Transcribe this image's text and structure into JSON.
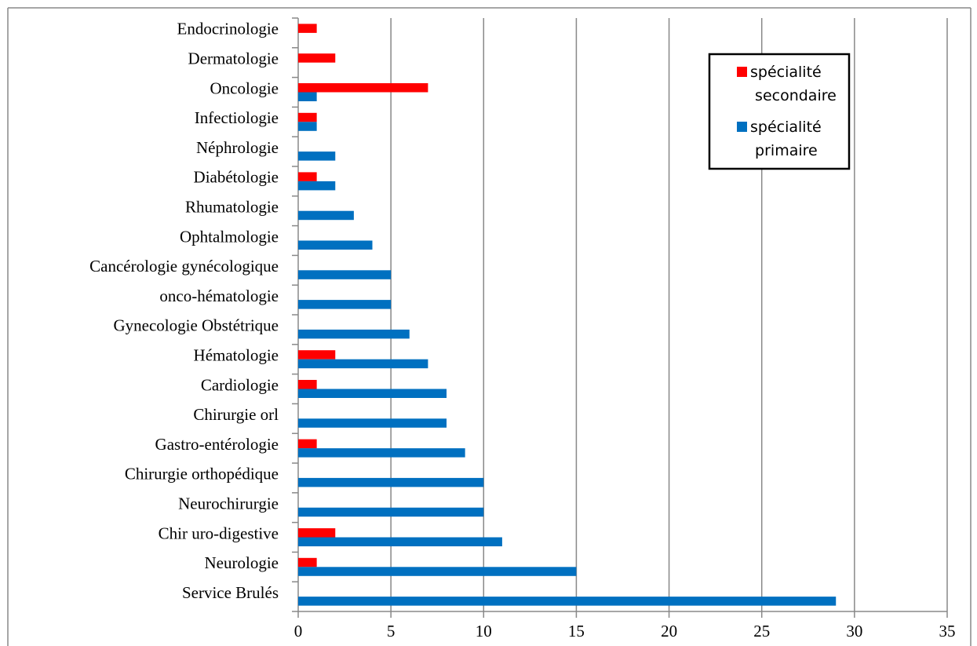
{
  "chart_data": {
    "type": "barh",
    "categories": [
      "Endocrinologie",
      "Dermatologie",
      "Oncologie",
      "Infectiologie",
      "Néphrologie",
      "Diabétologie",
      "Rhumatologie",
      "Ophtalmologie",
      "Cancérologie gynécologique",
      "onco-hématologie",
      "Gynecologie Obstétrique",
      "Hématologie",
      "Cardiologie",
      "Chirurgie orl",
      "Gastro-entérologie",
      "Chirurgie orthopédique",
      "Neurochirurgie",
      "Chir uro-digestive",
      "Neurologie",
      "Service Brulés"
    ],
    "series": [
      {
        "name": "spécialité secondaire",
        "color": "#ff0000",
        "values": [
          1,
          2,
          7,
          1,
          0,
          1,
          0,
          0,
          0,
          0,
          0,
          2,
          1,
          0,
          1,
          0,
          0,
          2,
          1,
          0
        ]
      },
      {
        "name": "spécialité primaire",
        "color": "#0070c0",
        "values": [
          0,
          0,
          1,
          1,
          2,
          2,
          3,
          4,
          5,
          5,
          6,
          7,
          8,
          8,
          9,
          10,
          10,
          11,
          15,
          29
        ]
      }
    ],
    "xlim": [
      0,
      35
    ],
    "xticks": [
      0,
      5,
      10,
      15,
      20,
      25,
      30,
      35
    ],
    "grid": true,
    "legend": "upper right"
  }
}
